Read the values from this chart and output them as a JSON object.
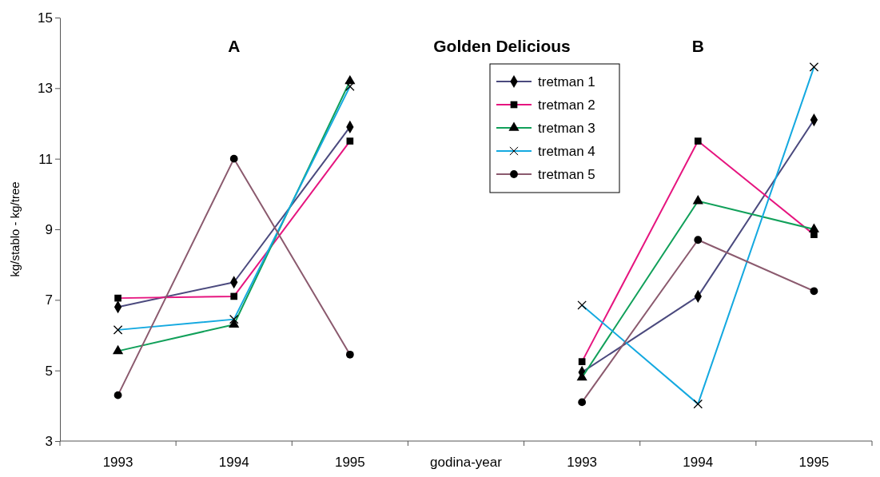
{
  "chart_data": {
    "type": "line",
    "title": "Golden Delicious",
    "ylabel": "kg/stablo - kg/tree",
    "categories": [
      "1993",
      "1994",
      "1995",
      "godina-year",
      "1993",
      "1994",
      "1995"
    ],
    "ylim": [
      3,
      15
    ],
    "yticks": [
      3,
      5,
      7,
      9,
      11,
      13,
      15
    ],
    "grid": false,
    "legend": "top",
    "annotations": [
      "A",
      "B"
    ],
    "series": [
      {
        "name": "tretman 1",
        "color": "#4b4a7e",
        "marker": "diamond",
        "values": [
          6.8,
          7.5,
          11.9,
          null,
          4.95,
          7.1,
          12.1
        ]
      },
      {
        "name": "tretman 2",
        "color": "#e6157f",
        "marker": "square",
        "values": [
          7.05,
          7.1,
          11.5,
          null,
          5.25,
          11.5,
          8.85
        ]
      },
      {
        "name": "tretman 3",
        "color": "#11a05a",
        "marker": "triangle",
        "values": [
          5.55,
          6.3,
          13.2,
          null,
          4.8,
          9.8,
          9.0
        ]
      },
      {
        "name": "tretman 4",
        "color": "#14a9e0",
        "marker": "cross",
        "values": [
          6.15,
          6.45,
          13.05,
          null,
          6.85,
          4.05,
          13.6
        ]
      },
      {
        "name": "tretman 5",
        "color": "#8b5a6e",
        "marker": "circle",
        "values": [
          4.3,
          11.0,
          5.45,
          null,
          4.1,
          8.7,
          7.25
        ]
      }
    ]
  }
}
